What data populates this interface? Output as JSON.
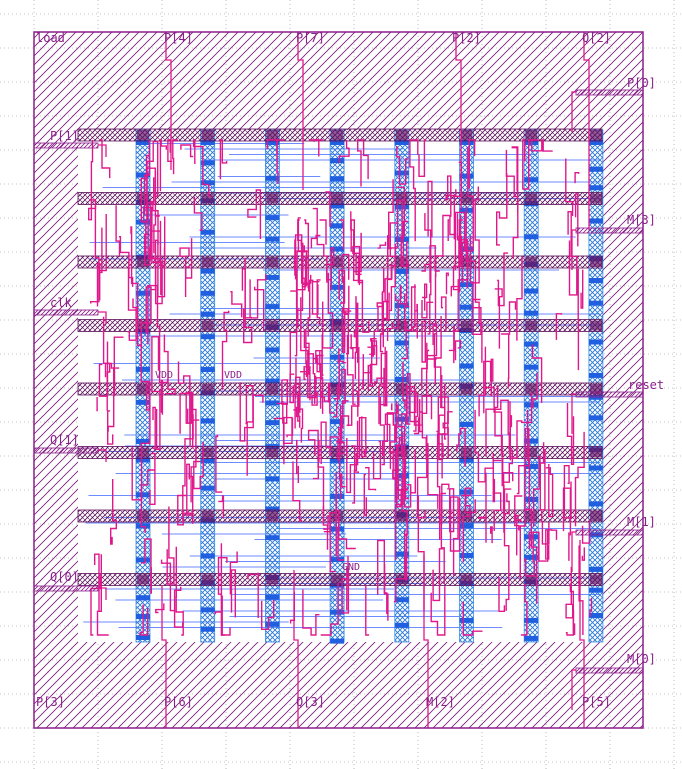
{
  "pins": {
    "top": [
      "load",
      "P[4]",
      "P[7]",
      "P[2]",
      "Q[2]"
    ],
    "bottom": [
      "P[3]",
      "P[6]",
      "Q[3]",
      "M[2]",
      "P[5]"
    ],
    "left": [
      "P[1]",
      "clk",
      "Q[1]",
      "Q[0]"
    ],
    "right": [
      "P[0]",
      "M[3]",
      "reset",
      "M[1]",
      "M[0]"
    ]
  },
  "inner_labels": [
    "VDD",
    "VDD",
    "GND"
  ],
  "colors": {
    "boundary": "#8b1f8b",
    "hatch": "#7a1a7a",
    "metal_vertical": "#3a8ee6",
    "metal_horizontal": "#5577ff",
    "route": "#e0188c",
    "grid": "#8a8a8a"
  },
  "layout": {
    "power_rails": 8,
    "vertical_stripes": 8
  }
}
